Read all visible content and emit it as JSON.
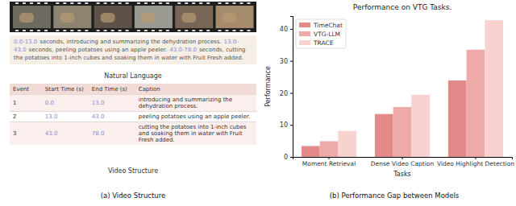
{
  "panel_a": {
    "natural_language": [
      {
        "time": "0.0-13.0",
        "text": "seconds, introducing and summarizing the dehydration process."
      },
      {
        "time": "13.0-43.0",
        "text": "seconds, peeling potatoes using an apple peeler."
      },
      {
        "time": "43.0-78.0",
        "text": "seconds, cutting the potatoes into 1-inch cubes and soaking them in water with Fruit Fresh added."
      }
    ],
    "natural_language_label": "Natural Language",
    "table": {
      "header": [
        "Event",
        "Start Time (s)",
        "End Time (s)",
        "Caption"
      ],
      "rows": [
        [
          "1",
          "0.0",
          "13.0",
          "introducing and summarizing the dehydration process."
        ],
        [
          "2",
          "13.0",
          "43.0",
          "peeling potatoes using an apple peeler."
        ],
        [
          "3",
          "43.0",
          "78.0",
          "cutting the potatoes into 1-inch cubes and soaking them in water with Fruit Fresh added."
        ]
      ]
    },
    "video_structure_label": "Video Structure",
    "caption": "(a) Video Structure"
  },
  "chart_data": {
    "type": "bar",
    "title": "Performance on VTG Tasks.",
    "x_label": "Tasks",
    "y_label": "Performance",
    "categories": [
      "Moment Retrieval",
      "Dense Video Caption",
      "Video Highlight Detection"
    ],
    "series": [
      {
        "name": "TimeChat",
        "color": "#e38b8b",
        "values": [
          3.4,
          13.4,
          23.9
        ]
      },
      {
        "name": "VTG-LLM",
        "color": "#eeaaa8",
        "values": [
          4.9,
          15.6,
          33.5
        ]
      },
      {
        "name": "TRACE",
        "color": "#f7d2ce",
        "values": [
          8.1,
          19.4,
          42.7
        ]
      }
    ],
    "ylim": [
      0,
      44
    ],
    "yticks": [
      0,
      10,
      20,
      30,
      40
    ],
    "grid": false,
    "legend": "upper left",
    "caption": "(b) Performance Gap between Models"
  }
}
